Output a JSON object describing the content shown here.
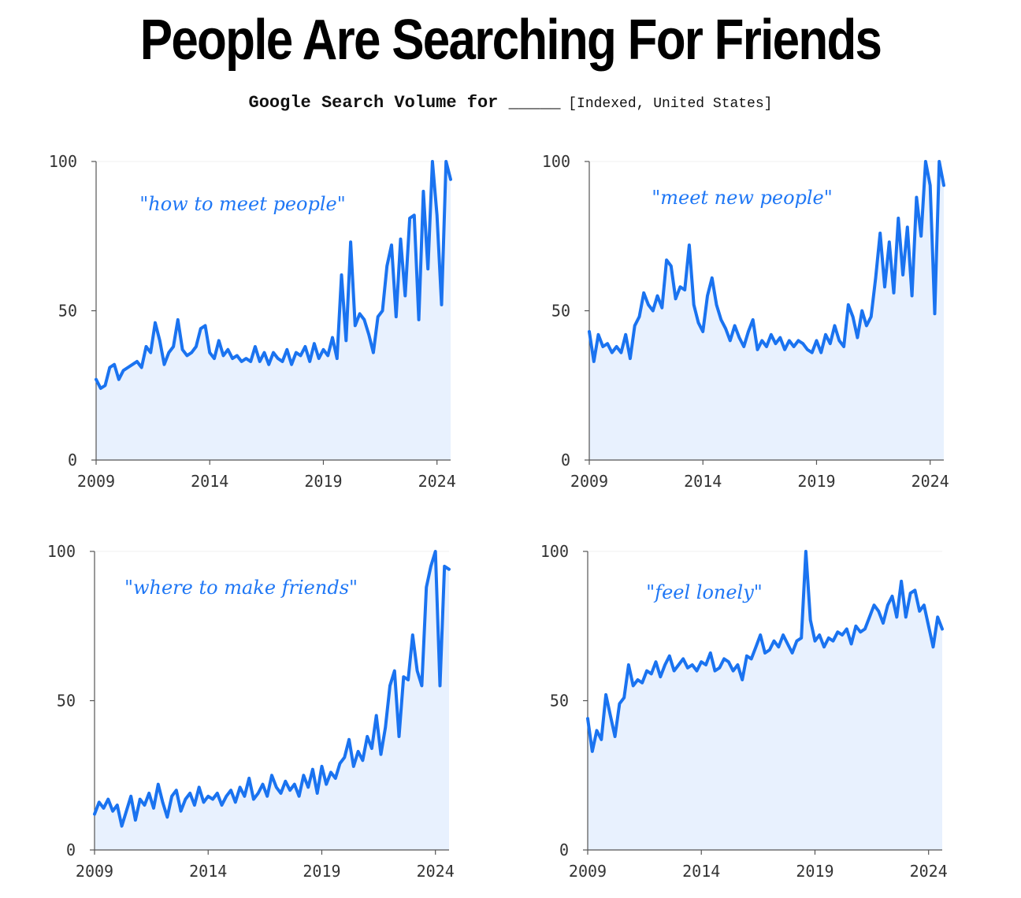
{
  "title": "People Are Searching For Friends",
  "subtitle": "Google Search Volume for _____",
  "subtitle_note": "[Indexed, United States]",
  "line_color": "#1a73f0",
  "fill_color": "#e8f1fe",
  "chart_data": [
    {
      "type": "area",
      "label": "\"how to meet people\"",
      "xlim": [
        2009,
        2024.6
      ],
      "ylim": [
        0,
        100
      ],
      "xticks": [
        2009,
        2014,
        2019,
        2024
      ],
      "yticks": [
        0,
        50,
        100
      ],
      "x": [
        2009.0,
        2009.2,
        2009.4,
        2009.6,
        2009.8,
        2010.0,
        2010.2,
        2010.4,
        2010.6,
        2010.8,
        2011.0,
        2011.2,
        2011.4,
        2011.6,
        2011.8,
        2012.0,
        2012.2,
        2012.4,
        2012.6,
        2012.8,
        2013.0,
        2013.2,
        2013.4,
        2013.6,
        2013.8,
        2014.0,
        2014.2,
        2014.4,
        2014.6,
        2014.8,
        2015.0,
        2015.2,
        2015.4,
        2015.6,
        2015.8,
        2016.0,
        2016.2,
        2016.4,
        2016.6,
        2016.8,
        2017.0,
        2017.2,
        2017.4,
        2017.6,
        2017.8,
        2018.0,
        2018.2,
        2018.4,
        2018.6,
        2018.8,
        2019.0,
        2019.2,
        2019.4,
        2019.6,
        2019.8,
        2020.0,
        2020.2,
        2020.4,
        2020.6,
        2020.8,
        2021.0,
        2021.2,
        2021.4,
        2021.6,
        2021.8,
        2022.0,
        2022.2,
        2022.4,
        2022.6,
        2022.8,
        2023.0,
        2023.2,
        2023.4,
        2023.6,
        2023.8,
        2024.0,
        2024.2,
        2024.4,
        2024.6
      ],
      "y": [
        27,
        24,
        25,
        31,
        32,
        27,
        30,
        31,
        32,
        33,
        31,
        38,
        36,
        46,
        40,
        32,
        36,
        38,
        47,
        37,
        35,
        36,
        38,
        44,
        45,
        36,
        34,
        40,
        35,
        37,
        34,
        35,
        33,
        34,
        33,
        38,
        33,
        36,
        32,
        36,
        34,
        33,
        37,
        32,
        36,
        35,
        38,
        33,
        39,
        34,
        37,
        35,
        41,
        34,
        62,
        40,
        73,
        45,
        49,
        47,
        42,
        36,
        48,
        50,
        65,
        72,
        48,
        74,
        55,
        81,
        82,
        47,
        90,
        64,
        100,
        82,
        52,
        100,
        94
      ]
    },
    {
      "type": "area",
      "label": "\"meet new people\"",
      "xlim": [
        2009,
        2024.6
      ],
      "ylim": [
        0,
        100
      ],
      "xticks": [
        2009,
        2014,
        2019,
        2024
      ],
      "yticks": [
        0,
        50,
        100
      ],
      "x": [
        2009.0,
        2009.2,
        2009.4,
        2009.6,
        2009.8,
        2010.0,
        2010.2,
        2010.4,
        2010.6,
        2010.8,
        2011.0,
        2011.2,
        2011.4,
        2011.6,
        2011.8,
        2012.0,
        2012.2,
        2012.4,
        2012.6,
        2012.8,
        2013.0,
        2013.2,
        2013.4,
        2013.6,
        2013.8,
        2014.0,
        2014.2,
        2014.4,
        2014.6,
        2014.8,
        2015.0,
        2015.2,
        2015.4,
        2015.6,
        2015.8,
        2016.0,
        2016.2,
        2016.4,
        2016.6,
        2016.8,
        2017.0,
        2017.2,
        2017.4,
        2017.6,
        2017.8,
        2018.0,
        2018.2,
        2018.4,
        2018.6,
        2018.8,
        2019.0,
        2019.2,
        2019.4,
        2019.6,
        2019.8,
        2020.0,
        2020.2,
        2020.4,
        2020.6,
        2020.8,
        2021.0,
        2021.2,
        2021.4,
        2021.6,
        2021.8,
        2022.0,
        2022.2,
        2022.4,
        2022.6,
        2022.8,
        2023.0,
        2023.2,
        2023.4,
        2023.6,
        2023.8,
        2024.0,
        2024.2,
        2024.4,
        2024.6
      ],
      "y": [
        43,
        33,
        42,
        38,
        39,
        36,
        38,
        36,
        42,
        34,
        45,
        48,
        56,
        52,
        50,
        55,
        51,
        67,
        65,
        54,
        58,
        57,
        72,
        52,
        46,
        43,
        55,
        61,
        52,
        47,
        44,
        40,
        45,
        41,
        38,
        43,
        47,
        37,
        40,
        38,
        42,
        39,
        41,
        37,
        40,
        38,
        40,
        39,
        37,
        36,
        40,
        36,
        42,
        39,
        45,
        40,
        38,
        52,
        48,
        41,
        50,
        45,
        48,
        61,
        76,
        58,
        73,
        56,
        81,
        62,
        78,
        55,
        88,
        75,
        100,
        92,
        49,
        100,
        92
      ]
    },
    {
      "type": "area",
      "label": "\"where to make friends\"",
      "xlim": [
        2009,
        2024.6
      ],
      "ylim": [
        0,
        100
      ],
      "xticks": [
        2009,
        2014,
        2019,
        2024
      ],
      "yticks": [
        0,
        50,
        100
      ],
      "x": [
        2009.0,
        2009.2,
        2009.4,
        2009.6,
        2009.8,
        2010.0,
        2010.2,
        2010.4,
        2010.6,
        2010.8,
        2011.0,
        2011.2,
        2011.4,
        2011.6,
        2011.8,
        2012.0,
        2012.2,
        2012.4,
        2012.6,
        2012.8,
        2013.0,
        2013.2,
        2013.4,
        2013.6,
        2013.8,
        2014.0,
        2014.2,
        2014.4,
        2014.6,
        2014.8,
        2015.0,
        2015.2,
        2015.4,
        2015.6,
        2015.8,
        2016.0,
        2016.2,
        2016.4,
        2016.6,
        2016.8,
        2017.0,
        2017.2,
        2017.4,
        2017.6,
        2017.8,
        2018.0,
        2018.2,
        2018.4,
        2018.6,
        2018.8,
        2019.0,
        2019.2,
        2019.4,
        2019.6,
        2019.8,
        2020.0,
        2020.2,
        2020.4,
        2020.6,
        2020.8,
        2021.0,
        2021.2,
        2021.4,
        2021.6,
        2021.8,
        2022.0,
        2022.2,
        2022.4,
        2022.6,
        2022.8,
        2023.0,
        2023.2,
        2023.4,
        2023.6,
        2023.8,
        2024.0,
        2024.2,
        2024.4,
        2024.6
      ],
      "y": [
        12,
        16,
        14,
        17,
        13,
        15,
        8,
        13,
        18,
        10,
        17,
        15,
        19,
        14,
        22,
        16,
        11,
        18,
        20,
        13,
        17,
        19,
        15,
        21,
        16,
        18,
        17,
        19,
        15,
        18,
        20,
        16,
        21,
        18,
        24,
        17,
        19,
        22,
        18,
        25,
        21,
        19,
        23,
        20,
        22,
        18,
        25,
        21,
        27,
        19,
        28,
        22,
        26,
        24,
        29,
        31,
        37,
        28,
        33,
        30,
        38,
        34,
        45,
        32,
        41,
        55,
        60,
        38,
        58,
        57,
        72,
        60,
        55,
        88,
        95,
        100,
        55,
        95,
        94
      ]
    },
    {
      "type": "area",
      "label": "\"feel lonely\"",
      "xlim": [
        2009,
        2024.6
      ],
      "ylim": [
        0,
        100
      ],
      "xticks": [
        2009,
        2014,
        2019,
        2024
      ],
      "yticks": [
        0,
        50,
        100
      ],
      "x": [
        2009.0,
        2009.2,
        2009.4,
        2009.6,
        2009.8,
        2010.0,
        2010.2,
        2010.4,
        2010.6,
        2010.8,
        2011.0,
        2011.2,
        2011.4,
        2011.6,
        2011.8,
        2012.0,
        2012.2,
        2012.4,
        2012.6,
        2012.8,
        2013.0,
        2013.2,
        2013.4,
        2013.6,
        2013.8,
        2014.0,
        2014.2,
        2014.4,
        2014.6,
        2014.8,
        2015.0,
        2015.2,
        2015.4,
        2015.6,
        2015.8,
        2016.0,
        2016.2,
        2016.4,
        2016.6,
        2016.8,
        2017.0,
        2017.2,
        2017.4,
        2017.6,
        2017.8,
        2018.0,
        2018.2,
        2018.4,
        2018.6,
        2018.8,
        2019.0,
        2019.2,
        2019.4,
        2019.6,
        2019.8,
        2020.0,
        2020.2,
        2020.4,
        2020.6,
        2020.8,
        2021.0,
        2021.2,
        2021.4,
        2021.6,
        2021.8,
        2022.0,
        2022.2,
        2022.4,
        2022.6,
        2022.8,
        2023.0,
        2023.2,
        2023.4,
        2023.6,
        2023.8,
        2024.0,
        2024.2,
        2024.4,
        2024.6
      ],
      "y": [
        44,
        33,
        40,
        37,
        52,
        45,
        38,
        49,
        51,
        62,
        55,
        57,
        56,
        60,
        59,
        63,
        58,
        62,
        65,
        60,
        62,
        64,
        61,
        62,
        60,
        63,
        62,
        66,
        60,
        61,
        64,
        63,
        60,
        62,
        57,
        65,
        64,
        68,
        72,
        66,
        67,
        70,
        68,
        72,
        69,
        66,
        70,
        71,
        100,
        77,
        70,
        72,
        68,
        71,
        70,
        73,
        72,
        74,
        69,
        75,
        73,
        74,
        78,
        82,
        80,
        76,
        82,
        85,
        78,
        90,
        78,
        86,
        87,
        80,
        82,
        75,
        68,
        78,
        74
      ]
    }
  ]
}
